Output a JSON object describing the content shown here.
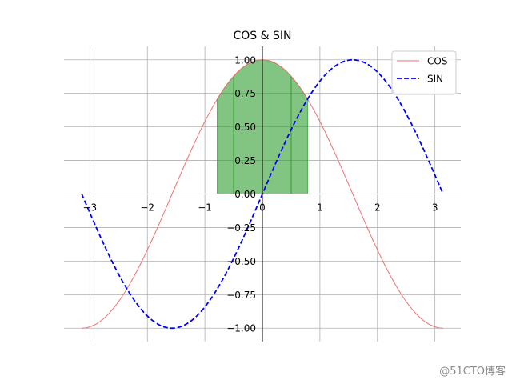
{
  "chart_data": {
    "type": "line",
    "title": "COS & SIN",
    "xlabel": "",
    "ylabel": "",
    "xlim": [
      -3.45,
      3.45
    ],
    "ylim": [
      -1.1,
      1.1
    ],
    "grid": true,
    "legend_position": "top-right",
    "xticks": [
      -3,
      -2,
      -1,
      0,
      1,
      2,
      3
    ],
    "xtick_labels": [
      "−3",
      "−2",
      "−1",
      "0",
      "1",
      "2",
      "3"
    ],
    "yticks": [
      1.0,
      0.75,
      0.5,
      0.25,
      0.0,
      -0.25,
      -0.5,
      -0.75,
      -1.0
    ],
    "ytick_labels": [
      "1.00",
      "0.75",
      "0.50",
      "0.25",
      "0.00",
      "−0.25",
      "−0.50",
      "−0.75",
      "−1.00"
    ],
    "series": [
      {
        "name": "COS",
        "function": "cos",
        "x_range": [
          -3.14159,
          3.14159
        ],
        "color": "#f07070",
        "line_style": "solid"
      },
      {
        "name": "SIN",
        "function": "sin",
        "x_range": [
          -3.14159,
          3.14159
        ],
        "color": "#0000ff",
        "line_style": "dashed"
      }
    ],
    "fill_regions": [
      {
        "x_from": -0.785,
        "x_to": -0.5,
        "under": "cos",
        "color": "#2e9e2e"
      },
      {
        "x_from": -0.5,
        "x_to": 0.5,
        "under": "cos",
        "color": "#2e9e2e"
      },
      {
        "x_from": 0.5,
        "x_to": 0.785,
        "under": "cos",
        "color": "#2e9e2e"
      }
    ]
  },
  "watermark": "@51CTO博客"
}
